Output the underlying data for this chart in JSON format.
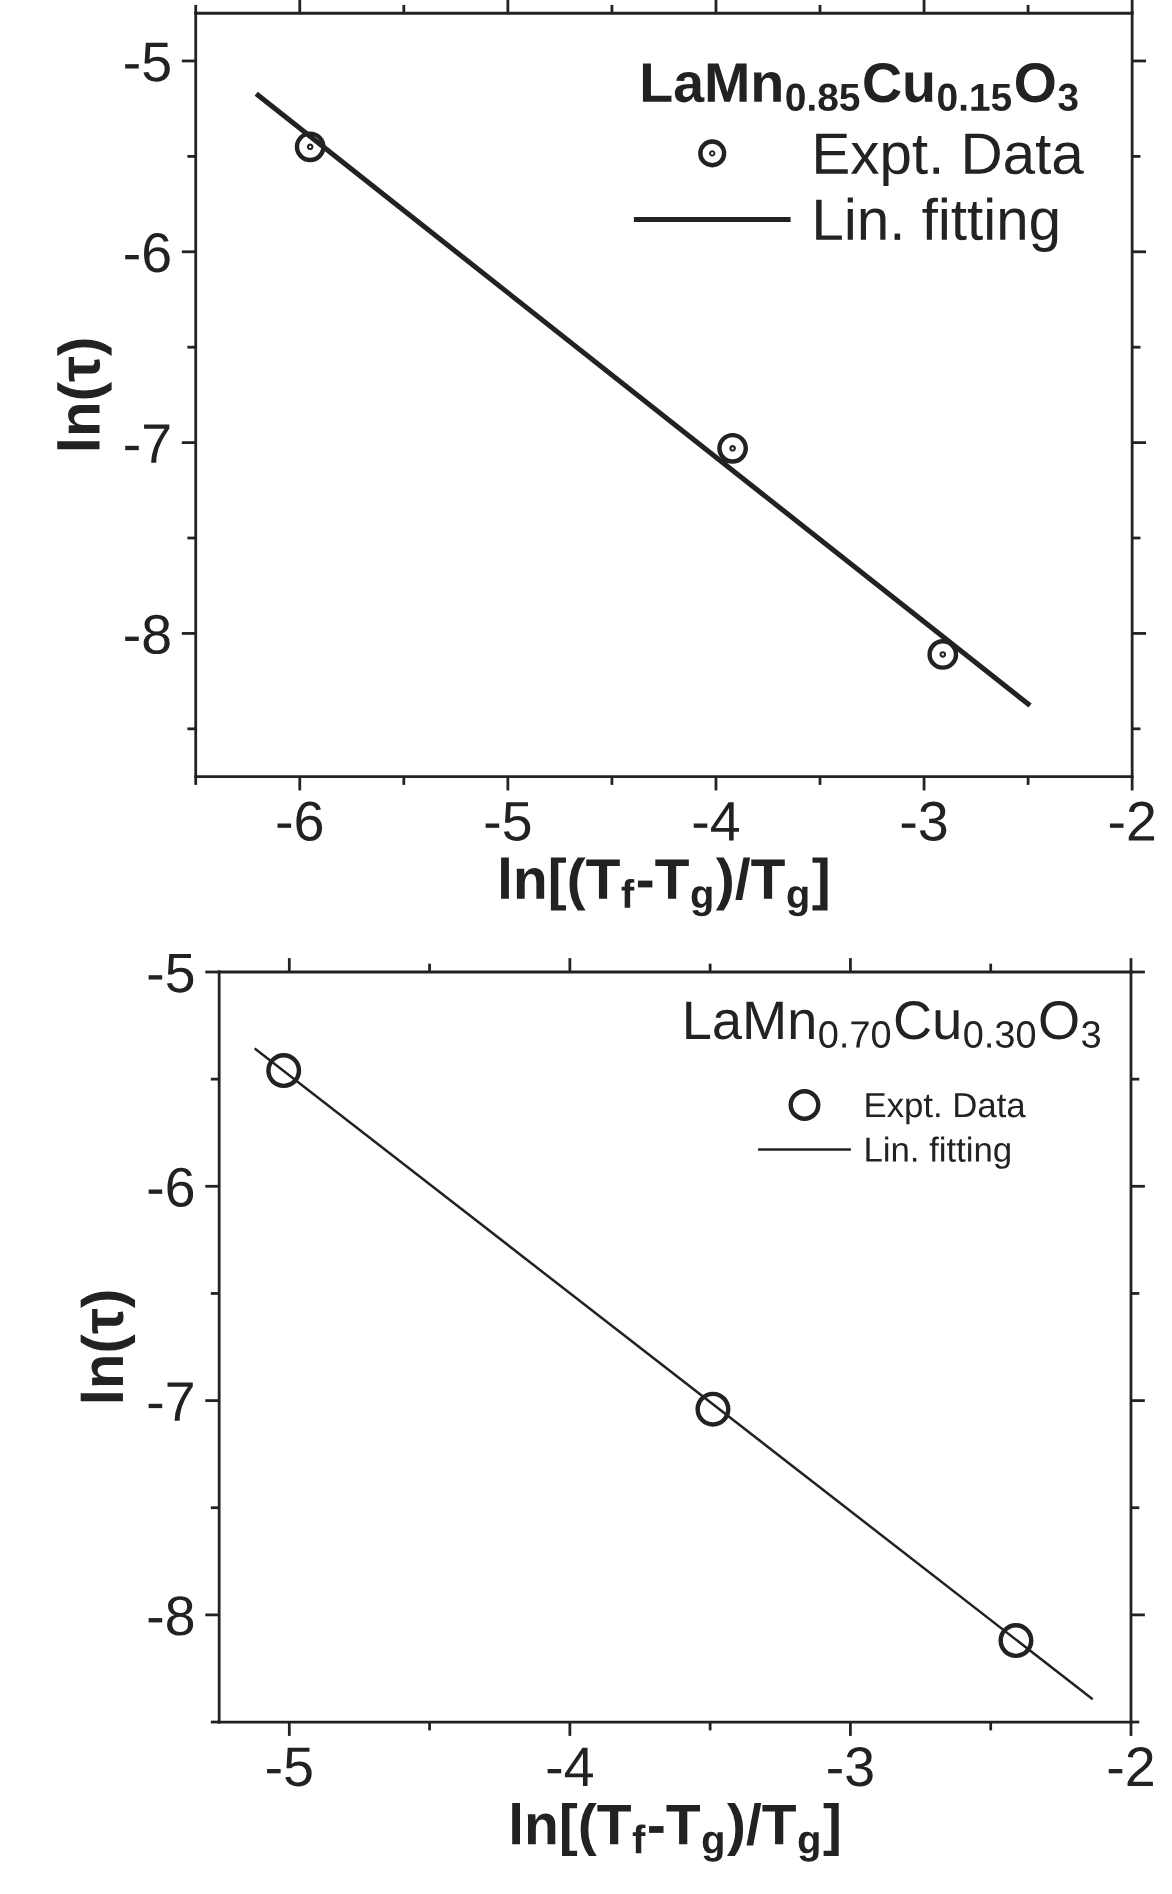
{
  "chart_data": [
    {
      "type": "scatter",
      "legend_title": "LaMn$_{0.85}$Cu$_{0.15}$O$_{3}$",
      "xlabel": "ln[(T$_{f}$-T$_{g}$)/T$_{g}$]",
      "ylabel": "ln(τ)",
      "legend": "top right",
      "series": [
        {
          "name": "Expt. Data",
          "marker": "circle",
          "color": "#222222",
          "x": [
            -5.95,
            -3.92,
            -2.91
          ],
          "values": [
            -5.45,
            -7.03,
            -8.11
          ]
        },
        {
          "name": "Lin. fitting",
          "type": "line",
          "line_style": "solid",
          "color": "#222222",
          "x": [
            -6.2,
            -2.5
          ],
          "values": [
            -5.18,
            -8.37
          ]
        }
      ],
      "xlim": [
        -6.5,
        -2
      ],
      "xticks": [
        {
          "value": -6.5,
          "label": null
        },
        -6,
        {
          "value": -5.5,
          "label": null
        },
        -5,
        {
          "value": -4.5,
          "label": null
        },
        -4,
        {
          "value": -3.5,
          "label": null
        },
        -3,
        {
          "value": -2.5,
          "label": null
        },
        -2
      ],
      "ylim": [
        -8.75,
        -4.75
      ],
      "yticks": [
        {
          "value": -8.5,
          "label": null
        },
        -8,
        {
          "value": -7.5,
          "label": null
        },
        -7,
        {
          "value": -6.5,
          "label": null
        },
        -6,
        {
          "value": -5.5,
          "label": null
        },
        -5
      ]
    },
    {
      "type": "scatter",
      "legend_title": "LaMn$_{0.70}$Cu$_{0.30}$O$_{3}$",
      "xlabel": "ln[(T$_{f}$-T$_{g}$)/T$_{g}$]",
      "ylabel": "ln(τ)",
      "legend": "top right",
      "series": [
        {
          "name": "Expt. Data",
          "marker": "circle",
          "color": "#222222",
          "x": [
            -5.02,
            -3.49,
            -2.41
          ],
          "values": [
            -5.46,
            -7.04,
            -8.12
          ]
        },
        {
          "name": "Lin. fitting",
          "type": "line",
          "line_style": "solid",
          "color": "#222222",
          "x": [
            -5.12,
            -2.14
          ],
          "values": [
            -5.36,
            -8.39
          ]
        }
      ],
      "xlim": [
        -5.25,
        -2
      ],
      "xticks": [
        -5,
        {
          "value": -4.5,
          "label": null
        },
        -4,
        {
          "value": -3.5,
          "label": null
        },
        -3,
        {
          "value": -2.5,
          "label": null
        },
        -2
      ],
      "ylim": [
        -8.5,
        -5
      ],
      "yticks": [
        {
          "value": -8.5,
          "label": null
        },
        -8,
        {
          "value": -7.5,
          "label": null
        },
        -7,
        {
          "value": -6.5,
          "label": null
        },
        -6,
        {
          "value": -5.5,
          "label": null
        },
        -5
      ]
    }
  ]
}
